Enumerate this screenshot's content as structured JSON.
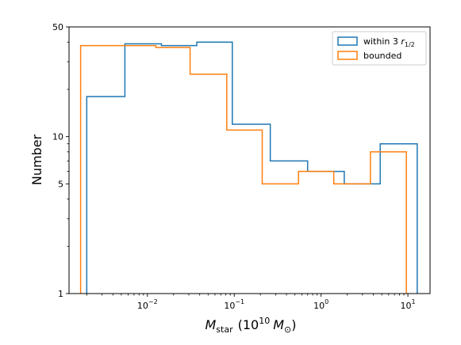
{
  "chart_data": {
    "type": "histogram",
    "xscale": "log",
    "yscale": "log",
    "xlim": [
      0.00125,
      18
    ],
    "ylim": [
      1,
      50
    ],
    "xlabel": {
      "main": "M",
      "sub": "star",
      "unit": "(10",
      "exp": "10",
      "unit2": "M",
      "odot": "⊙",
      "close": ")"
    },
    "ylabel": "Number",
    "x_ticks": [
      {
        "value": 0.01,
        "base": "10",
        "exp": "−2"
      },
      {
        "value": 0.1,
        "base": "10",
        "exp": "−1"
      },
      {
        "value": 1,
        "base": "10",
        "exp": "0"
      },
      {
        "value": 10,
        "base": "10",
        "exp": "1"
      }
    ],
    "y_ticks": [
      {
        "value": 1,
        "label": "1"
      },
      {
        "value": 5,
        "label": "5"
      },
      {
        "value": 10,
        "label": "10"
      },
      {
        "value": 50,
        "label": "50"
      }
    ],
    "legend": {
      "position": "upper right"
    },
    "series": [
      {
        "name": "within 3 r",
        "name_sub": "1/2",
        "color": "#1f77b4",
        "edges": [
          0.002,
          0.0055,
          0.0145,
          0.037,
          0.095,
          0.26,
          0.7,
          1.85,
          4.8,
          12.8
        ],
        "counts": [
          18,
          39,
          38,
          40,
          12,
          7,
          6,
          5,
          9
        ]
      },
      {
        "name": "bounded",
        "color": "#ff7f0e",
        "edges": [
          0.0017,
          0.0125,
          0.031,
          0.082,
          0.21,
          0.55,
          1.4,
          3.7,
          9.6
        ],
        "counts": [
          38,
          37,
          25,
          11,
          5,
          6,
          5,
          8
        ]
      }
    ]
  }
}
